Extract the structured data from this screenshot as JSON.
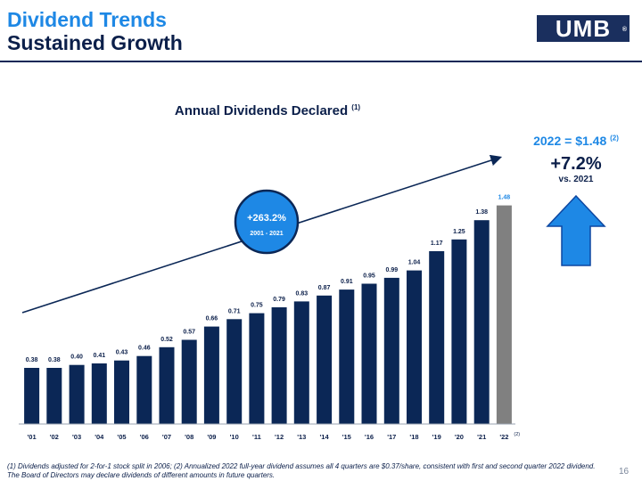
{
  "header": {
    "title_line1": "Dividend Trends",
    "title_line2": "Sustained Growth",
    "logo_text": "UMB",
    "logo_mark": "®"
  },
  "chart_data": {
    "type": "bar",
    "title": "Annual Dividends Declared",
    "title_sup": "(1)",
    "categories": [
      "'01",
      "'02",
      "'03",
      "'04",
      "'05",
      "'06",
      "'07",
      "'08",
      "'09",
      "'10",
      "'11",
      "'12",
      "'13",
      "'14",
      "'15",
      "'16",
      "'17",
      "'18",
      "'19",
      "'20",
      "'21",
      "'22"
    ],
    "values": [
      0.38,
      0.38,
      0.4,
      0.41,
      0.43,
      0.46,
      0.52,
      0.57,
      0.66,
      0.71,
      0.75,
      0.79,
      0.83,
      0.87,
      0.91,
      0.95,
      0.99,
      1.04,
      1.17,
      1.25,
      1.38,
      1.48
    ],
    "labels": [
      "0.38",
      "0.38",
      "0.40",
      "0.41",
      "0.43",
      "0.46",
      "0.52",
      "0.57",
      "0.66",
      "0.71",
      "0.75",
      "0.79",
      "0.83",
      "0.87",
      "0.91",
      "0.95",
      "0.99",
      "1.04",
      "1.17",
      "1.25",
      "1.38",
      "1.48"
    ],
    "last_category_sup": "(2)",
    "colors": {
      "bar": "#0b2756",
      "bar_projected": "#808080",
      "label_projected": "#1e88e5"
    },
    "ylim": [
      0,
      1.6
    ],
    "growth_badge": {
      "value": "+263.2%",
      "period": "2001 - 2021",
      "color": "#1e88e5"
    }
  },
  "sidebar": {
    "dividend_2022": "2022 = $1.48",
    "dividend_sup": "(2)",
    "growth": "+7.2%",
    "vs_label": "vs. 2021",
    "arrow_color": "#1e88e5"
  },
  "footnote": "(1) Dividends adjusted for 2-for-1 stock split in 2006; (2) Annualized 2022 full-year dividend assumes all 4 quarters are $0.37/share, consistent with first and second quarter 2022 dividend. The Board of Directors may declare dividends of different amounts in future quarters.",
  "page_number": "16"
}
